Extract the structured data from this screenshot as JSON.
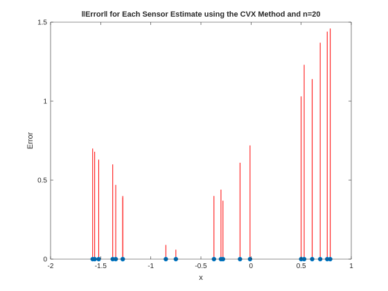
{
  "chart_data": {
    "type": "stem",
    "title": "‖Error‖ for Each Sensor Estimate using the CVX Method and n=20",
    "xlabel": "x",
    "ylabel": "Error",
    "xlim": [
      -2,
      1
    ],
    "ylim": [
      0,
      1.5
    ],
    "xticks": [
      -2,
      -1.5,
      -1,
      -0.5,
      0,
      0.5,
      1
    ],
    "xtick_labels": [
      "-2",
      "-1.5",
      "-1",
      "-0.5",
      "0",
      "0.5",
      "1"
    ],
    "yticks": [
      0,
      0.5,
      1,
      1.5
    ],
    "ytick_labels": [
      "0",
      "0.5",
      "1",
      "1.5"
    ],
    "grid": false,
    "legend": "none",
    "stem_color": "#ff0000",
    "marker_color": "#0072bd",
    "points": [
      {
        "x": -1.58,
        "y": 0.7
      },
      {
        "x": -1.56,
        "y": 0.68
      },
      {
        "x": -1.52,
        "y": 0.63
      },
      {
        "x": -1.38,
        "y": 0.6
      },
      {
        "x": -1.35,
        "y": 0.47
      },
      {
        "x": -1.28,
        "y": 0.4
      },
      {
        "x": -1.28,
        "y": 0.39
      },
      {
        "x": -0.85,
        "y": 0.09
      },
      {
        "x": -0.75,
        "y": 0.06
      },
      {
        "x": -0.37,
        "y": 0.4
      },
      {
        "x": -0.3,
        "y": 0.44
      },
      {
        "x": -0.28,
        "y": 0.37
      },
      {
        "x": -0.11,
        "y": 0.61
      },
      {
        "x": -0.01,
        "y": 0.72
      },
      {
        "x": 0.5,
        "y": 1.03
      },
      {
        "x": 0.53,
        "y": 1.23
      },
      {
        "x": 0.61,
        "y": 1.14
      },
      {
        "x": 0.69,
        "y": 1.37
      },
      {
        "x": 0.76,
        "y": 1.44
      },
      {
        "x": 0.79,
        "y": 1.46
      }
    ]
  }
}
